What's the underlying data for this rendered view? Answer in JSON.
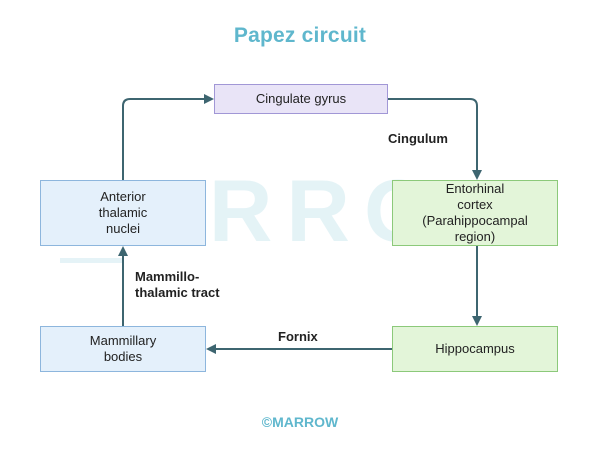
{
  "title": "Papez circuit",
  "watermark": "MARROW",
  "nodes": {
    "cingulate": "Cingulate gyrus",
    "entorhinal": "Entorhinal\ncortex\n(Parahippocampal\nregion)",
    "hippocampus": "Hippocampus",
    "mammillary": "Mammillary\nbodies",
    "anterior": "Anterior\nthalamic\nnuclei"
  },
  "edges": {
    "cingulum": "Cingulum",
    "fornix": "Fornix",
    "mammillothalamic": "Mammillo-\nthalamic tract"
  },
  "footer": "©MARROW",
  "colors": {
    "title": "#5fb7cd",
    "arrow": "#3d6570",
    "blue_fill": "#e4f0fb",
    "green_fill": "#e3f5d9",
    "purple_fill": "#e9e4f7"
  }
}
